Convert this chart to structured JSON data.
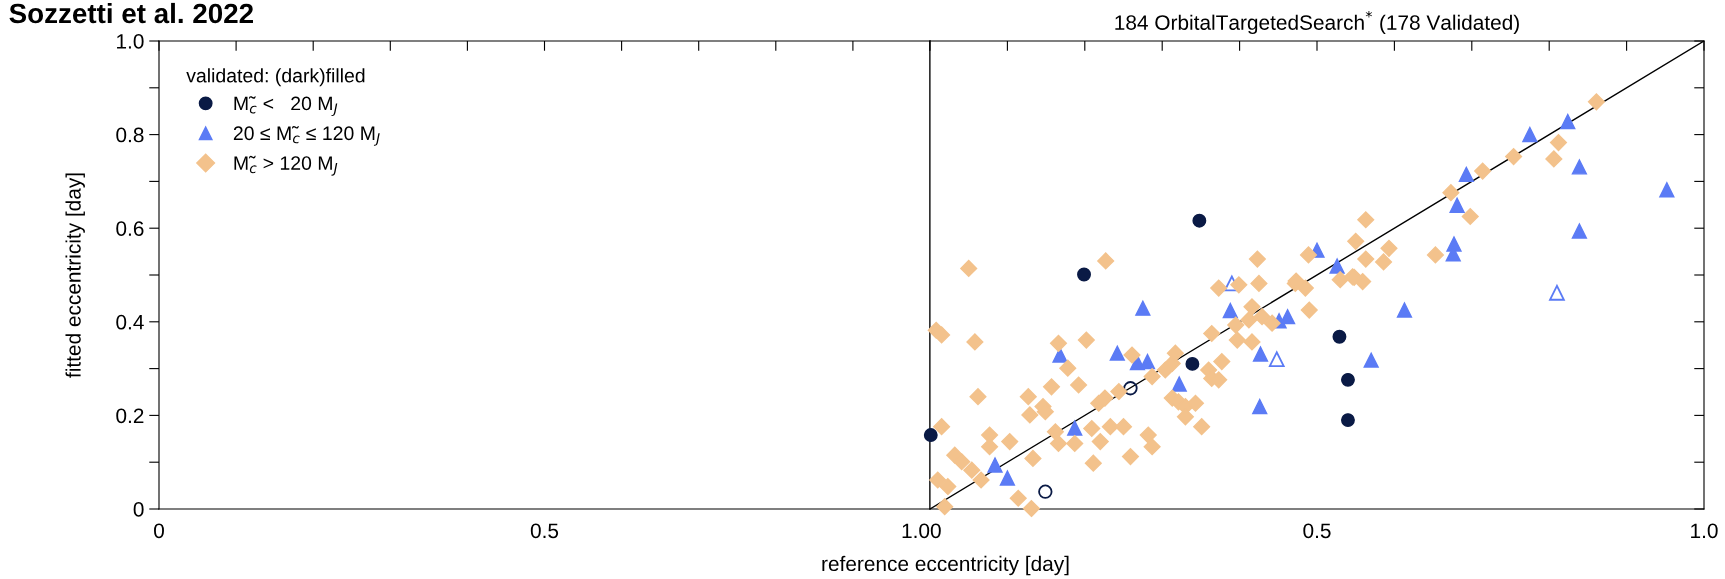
{
  "chart_data": [
    {
      "type": "scatter",
      "ylabel": "fitted eccentricity [day]",
      "annotations": [
        "Sozzetti et al. 2022"
      ],
      "xlim": [
        0,
        1.0
      ],
      "xticks": [
        0,
        {
          "value": 0.1,
          "label": null
        },
        {
          "value": 0.2,
          "label": null
        },
        {
          "value": 0.3,
          "label": null
        },
        {
          "value": 0.4,
          "label": null
        },
        0.5,
        {
          "value": 0.6,
          "label": null
        },
        {
          "value": 0.7,
          "label": null
        },
        {
          "value": 0.8,
          "label": null
        },
        {
          "value": 0.9,
          "label": null
        },
        {
          "value": 1.0,
          "label": "1.0"
        }
      ],
      "ylim": [
        0,
        1.0
      ],
      "yticks": [
        0,
        {
          "value": 0.1,
          "label": null
        },
        0.2,
        {
          "value": 0.3,
          "label": null
        },
        0.4,
        {
          "value": 0.5,
          "label": null
        },
        0.6,
        {
          "value": 0.7,
          "label": null
        },
        0.8,
        {
          "value": 0.9,
          "label": null
        },
        {
          "value": 1.0,
          "label": "1.0"
        }
      ],
      "legend": false
    },
    {
      "type": "scatter",
      "title": "184 OrbitalTargetedSearch$^{*}$ (178 Validated)",
      "xlabel": "reference eccentricity [day]",
      "legend_title": "validated: (dark)filled",
      "legend": "top left",
      "tick_labels": "x",
      "xlim": [
        0,
        1.0
      ],
      "xticks": [
        0,
        {
          "value": 0.1,
          "label": null
        },
        {
          "value": 0.2,
          "label": null
        },
        {
          "value": 0.3,
          "label": null
        },
        {
          "value": 0.4,
          "label": null
        },
        0.5,
        {
          "value": 0.6,
          "label": null
        },
        {
          "value": 0.7,
          "label": null
        },
        {
          "value": 0.8,
          "label": null
        },
        {
          "value": 0.9,
          "label": null
        },
        {
          "value": 1.0,
          "label": "1.0"
        }
      ],
      "ylim": [
        0,
        1.0
      ],
      "yticks": [
        {
          "value": 0,
          "label": null
        },
        {
          "value": 0.1,
          "label": null
        },
        {
          "value": 0.2,
          "label": null
        },
        {
          "value": 0.3,
          "label": null
        },
        {
          "value": 0.4,
          "label": null
        },
        {
          "value": 0.5,
          "label": null
        },
        {
          "value": 0.6,
          "label": null
        },
        {
          "value": 0.7,
          "label": null
        },
        {
          "value": 0.8,
          "label": null
        },
        {
          "value": 0.9,
          "label": null
        },
        {
          "value": 1.0,
          "label": null
        }
      ],
      "series": [
        {
          "type": "line",
          "color": "#000000",
          "marker": "none",
          "x": [
            0,
            1.0
          ],
          "values": [
            0,
            1.0
          ]
        },
        {
          "name": "M̃$_{c}$ <   20 M$_{J}$",
          "color": "#0a1a45",
          "marker": "circle",
          "x": [
            0.199,
            0.339,
            0.529,
            0.54,
            0.54,
            0.001,
            0.348
          ],
          "values": [
            0.501,
            0.31,
            0.368,
            0.276,
            0.19,
            0.158,
            0.616
          ]
        },
        {
          "color": "#0a1a45",
          "marker": "circle",
          "x": [
            0.259,
            0.149
          ],
          "values": [
            0.258,
            0.037
          ]
        },
        {
          "name": "20 ≤ M̃$_{c}$ ≤ 120 M$_{J}$",
          "color": "#5b7bf5",
          "marker": "triangle",
          "x": [
            0.824,
            0.775,
            0.839,
            0.693,
            0.952,
            0.681,
            0.839,
            0.677,
            0.676,
            0.5,
            0.526,
            0.275,
            0.388,
            0.451,
            0.462,
            0.168,
            0.242,
            0.268,
            0.281,
            0.427,
            0.57,
            0.322,
            0.426,
            0.187,
            0.084,
            0.1,
            0.613
          ],
          "values": [
            0.828,
            0.8,
            0.731,
            0.715,
            0.682,
            0.649,
            0.594,
            0.566,
            0.545,
            0.553,
            0.519,
            0.429,
            0.424,
            0.402,
            0.411,
            0.329,
            0.333,
            0.313,
            0.315,
            0.331,
            0.318,
            0.267,
            0.219,
            0.173,
            0.094,
            0.066,
            0.425
          ]
        },
        {
          "color": "#5b7bf5",
          "marker": "triangle",
          "x": [
            0.39,
            0.448,
            0.81
          ],
          "values": [
            0.482,
            0.32,
            0.462
          ]
        },
        {
          "name": "M̃$_{c}$ > 120 M$_{J}$",
          "color": "#f3c28c",
          "marker": "diamond",
          "x": [
            0.008,
            0.015,
            0.058,
            0.202,
            0.166,
            0.178,
            0.062,
            0.157,
            0.192,
            0.127,
            0.129,
            0.146,
            0.149,
            0.015,
            0.077,
            0.077,
            0.103,
            0.032,
            0.041,
            0.054,
            0.01,
            0.023,
            0.066,
            0.114,
            0.131,
            0.019,
            0.133,
            0.162,
            0.166,
            0.187,
            0.218,
            0.226,
            0.209,
            0.22,
            0.233,
            0.25,
            0.211,
            0.259,
            0.282,
            0.287,
            0.244,
            0.261,
            0.287,
            0.304,
            0.313,
            0.317,
            0.313,
            0.321,
            0.33,
            0.33,
            0.343,
            0.351,
            0.36,
            0.364,
            0.377,
            0.373,
            0.364,
            0.397,
            0.373,
            0.399,
            0.425,
            0.416,
            0.429,
            0.442,
            0.416,
            0.472,
            0.485,
            0.49,
            0.412,
            0.395,
            0.559,
            0.546,
            0.861,
            0.812,
            0.806,
            0.754,
            0.714,
            0.673,
            0.698,
            0.563,
            0.55,
            0.593,
            0.653,
            0.489,
            0.423,
            0.227,
            0.05,
            0.563,
            0.586,
            0.53,
            0.548,
            0.473
          ],
          "values": [
            0.382,
            0.372,
            0.357,
            0.361,
            0.354,
            0.301,
            0.24,
            0.261,
            0.265,
            0.24,
            0.201,
            0.219,
            0.208,
            0.176,
            0.158,
            0.133,
            0.144,
            0.115,
            0.101,
            0.083,
            0.062,
            0.048,
            0.062,
            0.023,
            0.001,
            0.005,
            0.108,
            0.165,
            0.14,
            0.14,
            0.226,
            0.237,
            0.172,
            0.144,
            0.176,
            0.176,
            0.098,
            0.112,
            0.158,
            0.133,
            0.251,
            0.329,
            0.283,
            0.297,
            0.311,
            0.333,
            0.237,
            0.229,
            0.219,
            0.197,
            0.226,
            0.176,
            0.297,
            0.279,
            0.315,
            0.276,
            0.375,
            0.361,
            0.472,
            0.479,
            0.482,
            0.432,
            0.411,
            0.397,
            0.357,
            0.482,
            0.472,
            0.425,
            0.404,
            0.393,
            0.486,
            0.496,
            0.87,
            0.783,
            0.748,
            0.753,
            0.722,
            0.676,
            0.625,
            0.618,
            0.572,
            0.557,
            0.543,
            0.543,
            0.534,
            0.53,
            0.514,
            0.534,
            0.528,
            0.49,
            0.495,
            0.487
          ]
        }
      ]
    }
  ]
}
